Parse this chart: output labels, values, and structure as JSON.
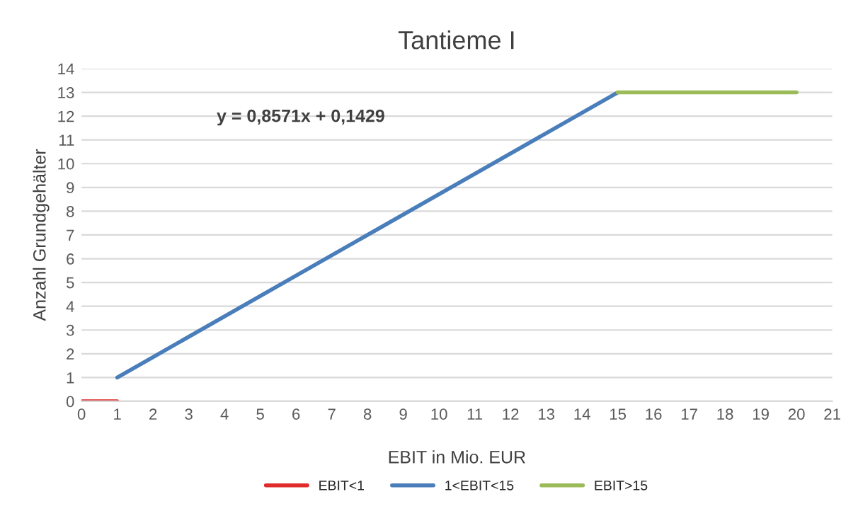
{
  "chart_data": {
    "type": "line",
    "title": "Tantieme I",
    "xlabel": "EBIT in Mio. EUR",
    "ylabel": "Anzahl Grundgehälter",
    "series": [
      {
        "name": "EBIT<1",
        "color": "#e02b2b",
        "x": [
          0,
          1
        ],
        "values": [
          0,
          0
        ]
      },
      {
        "name": "1<EBIT<15",
        "color": "#4a7ebb",
        "x": [
          1,
          15
        ],
        "values": [
          1,
          13
        ]
      },
      {
        "name": "EBIT>15",
        "color": "#9bbb59",
        "x": [
          15,
          20
        ],
        "values": [
          13,
          13
        ]
      }
    ],
    "annotations": [
      "y = 0,8571x + 0,1429"
    ],
    "xlim": [
      0,
      21
    ],
    "xticks": [
      0,
      1,
      2,
      3,
      4,
      5,
      6,
      7,
      8,
      9,
      10,
      11,
      12,
      13,
      14,
      15,
      16,
      17,
      18,
      19,
      20,
      21
    ],
    "ylim": [
      0,
      14
    ],
    "yticks": [
      0,
      1,
      2,
      3,
      4,
      5,
      6,
      7,
      8,
      9,
      10,
      11,
      12,
      13,
      14
    ],
    "grid": "y",
    "legend": "bottom",
    "marker": "none",
    "line_style": "solid"
  }
}
